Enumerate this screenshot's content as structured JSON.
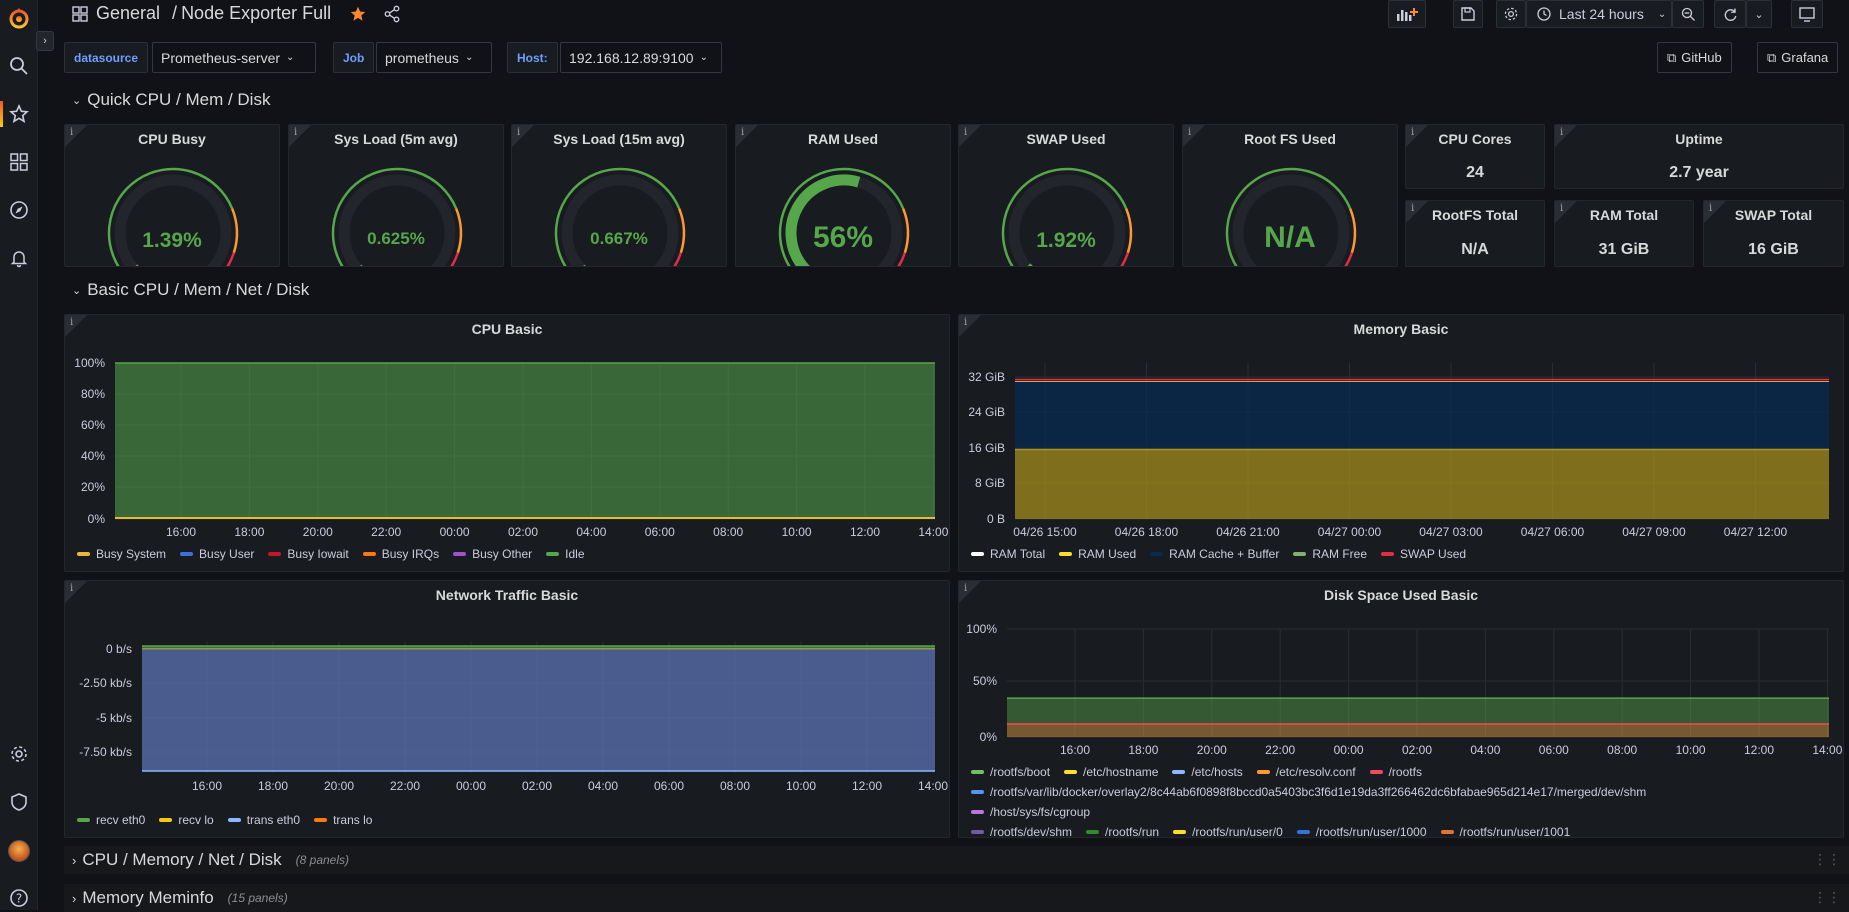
{
  "breadcrumb": {
    "folder": "General",
    "separator": "/",
    "dashboard": "Node Exporter Full"
  },
  "toolbar": {
    "time_range": "Last 24 hours"
  },
  "variables": [
    {
      "label": "datasource",
      "value": "Prometheus-server"
    },
    {
      "label": "Job",
      "value": "prometheus"
    },
    {
      "label": "Host:",
      "value": "192.168.12.89:9100"
    }
  ],
  "links": {
    "github": "GitHub",
    "grafana": "Grafana"
  },
  "rows": {
    "quick": "Quick CPU / Mem / Disk",
    "basic": "Basic CPU / Mem / Net / Disk",
    "cpu_mem": {
      "title": "CPU / Memory / Net / Disk",
      "count": "(8 panels)"
    },
    "meminfo": {
      "title": "Memory Meminfo",
      "count": "(15 panels)"
    }
  },
  "gauges": [
    {
      "title": "CPU Busy",
      "value": "1.39%",
      "fraction": 0.0139
    },
    {
      "title": "Sys Load (5m avg)",
      "value": "0.625%",
      "fraction": 0.00625
    },
    {
      "title": "Sys Load (15m avg)",
      "value": "0.667%",
      "fraction": 0.00667
    },
    {
      "title": "RAM Used",
      "value": "56%",
      "fraction": 0.56
    },
    {
      "title": "SWAP Used",
      "value": "1.92%",
      "fraction": 0.0192
    },
    {
      "title": "Root FS Used",
      "value": "N/A",
      "fraction": 0
    }
  ],
  "stats": {
    "cpu_cores": {
      "title": "CPU Cores",
      "value": "24"
    },
    "uptime": {
      "title": "Uptime",
      "value": "2.7 year"
    },
    "rootfs_total": {
      "title": "RootFS Total",
      "value": "N/A"
    },
    "ram_total": {
      "title": "RAM Total",
      "value": "31 GiB"
    },
    "swap_total": {
      "title": "SWAP Total",
      "value": "16 GiB"
    }
  },
  "panel_titles": {
    "cpu_basic": "CPU Basic",
    "memory_basic": "Memory Basic",
    "network_basic": "Network Traffic Basic",
    "disk_basic": "Disk Space Used Basic"
  },
  "chart_data": [
    {
      "type": "area",
      "title": "CPU Basic",
      "x": [
        "16:00",
        "18:00",
        "20:00",
        "22:00",
        "00:00",
        "02:00",
        "04:00",
        "06:00",
        "08:00",
        "10:00",
        "12:00",
        "14:00"
      ],
      "y_ticks": [
        "100%",
        "80%",
        "60%",
        "40%",
        "20%",
        "0%"
      ],
      "ylim": [
        0,
        100
      ],
      "series": [
        {
          "name": "Busy System",
          "color": "#eab839",
          "values": [
            0.5,
            0.5,
            0.5,
            0.5,
            0.5,
            0.5,
            0.5,
            0.5,
            0.5,
            0.5,
            0.5,
            0.5
          ]
        },
        {
          "name": "Busy User",
          "color": "#3d71d9",
          "values": [
            0.8,
            0.8,
            0.8,
            0.8,
            0.8,
            0.8,
            0.8,
            0.8,
            0.8,
            0.8,
            0.8,
            0.8
          ]
        },
        {
          "name": "Busy Iowait",
          "color": "#c4162a",
          "values": [
            0,
            0,
            0,
            0,
            0,
            0,
            0,
            0,
            0,
            0,
            0,
            0
          ]
        },
        {
          "name": "Busy IRQs",
          "color": "#ff780a",
          "values": [
            0,
            0,
            0,
            0,
            0,
            0,
            0,
            0,
            0,
            0,
            0,
            0
          ]
        },
        {
          "name": "Busy Other",
          "color": "#a352cc",
          "values": [
            0,
            0,
            0,
            0,
            0,
            0,
            0,
            0,
            0,
            0,
            0,
            0
          ]
        },
        {
          "name": "Idle",
          "color": "#56a64b",
          "values": [
            98.6,
            98.6,
            98.6,
            98.6,
            98.6,
            98.6,
            98.6,
            98.6,
            98.6,
            98.6,
            98.6,
            98.6
          ]
        }
      ]
    },
    {
      "type": "area",
      "title": "Memory Basic",
      "x": [
        "04/26 15:00",
        "04/26 18:00",
        "04/26 21:00",
        "04/27 00:00",
        "04/27 03:00",
        "04/27 06:00",
        "04/27 09:00",
        "04/27 12:00"
      ],
      "y_ticks": [
        "32 GiB",
        "24 GiB",
        "16 GiB",
        "8 GiB",
        "0 B"
      ],
      "ylim": [
        0,
        35
      ],
      "series": [
        {
          "name": "RAM Total",
          "color": "#ffffff",
          "values": [
            31.3,
            31.3,
            31.3,
            31.3,
            31.3,
            31.3,
            31.3,
            31.3
          ]
        },
        {
          "name": "RAM Used",
          "color": "#fade2a",
          "values": [
            15.6,
            15.6,
            15.6,
            15.6,
            15.6,
            15.6,
            15.6,
            15.6
          ]
        },
        {
          "name": "RAM Cache + Buffer",
          "color": "#052b51",
          "values": [
            15.2,
            15.2,
            15.2,
            15.2,
            15.2,
            15.2,
            15.2,
            15.2
          ]
        },
        {
          "name": "RAM Free",
          "color": "#7eb26d",
          "values": [
            0.4,
            0.4,
            0.4,
            0.4,
            0.4,
            0.4,
            0.4,
            0.4
          ]
        },
        {
          "name": "SWAP Used",
          "color": "#e02f44",
          "values": [
            0.3,
            0.3,
            0.3,
            0.3,
            0.3,
            0.3,
            0.3,
            0.3
          ]
        }
      ]
    },
    {
      "type": "area",
      "title": "Network Traffic Basic",
      "x": [
        "16:00",
        "18:00",
        "20:00",
        "22:00",
        "00:00",
        "02:00",
        "04:00",
        "06:00",
        "08:00",
        "10:00",
        "12:00",
        "14:00"
      ],
      "y_ticks": [
        "0 b/s",
        "-2.50 kb/s",
        "-5 kb/s",
        "-7.50 kb/s"
      ],
      "ylim": [
        -9,
        0.5
      ],
      "series": [
        {
          "name": "recv eth0",
          "color": "#56a64b",
          "values": [
            0.2,
            0.2,
            0.2,
            0.2,
            0.2,
            0.2,
            0.2,
            0.2,
            0.2,
            0.2,
            0.2,
            0.2
          ]
        },
        {
          "name": "recv lo",
          "color": "#f2cc0c",
          "values": [
            0.1,
            0.1,
            0.1,
            0.1,
            0.1,
            0.1,
            0.1,
            0.1,
            0.1,
            0.1,
            0.1,
            0.1
          ]
        },
        {
          "name": "trans eth0",
          "color": "#8ab8ff",
          "values": [
            -8.8,
            -8.8,
            -8.8,
            -8.8,
            -8.8,
            -8.8,
            -8.8,
            -8.8,
            -8.8,
            -8.8,
            -8.8,
            -8.8
          ]
        },
        {
          "name": "trans lo",
          "color": "#ff780a",
          "values": [
            0,
            0,
            0,
            0,
            0,
            0,
            0,
            0,
            0,
            0,
            0,
            0
          ]
        }
      ]
    },
    {
      "type": "area",
      "title": "Disk Space Used Basic",
      "x": [
        "16:00",
        "18:00",
        "20:00",
        "22:00",
        "00:00",
        "02:00",
        "04:00",
        "06:00",
        "08:00",
        "10:00",
        "12:00",
        "14:00"
      ],
      "y_ticks": [
        "100%",
        "50%",
        "0%"
      ],
      "ylim": [
        0,
        100
      ],
      "series": [
        {
          "name": "/rootfs/boot",
          "color": "#73bf69",
          "values": [
            36,
            36,
            36,
            36,
            36,
            36,
            36,
            36,
            36,
            36,
            36,
            36
          ]
        },
        {
          "name": "/etc/hostname",
          "color": "#fade2a",
          "values": [
            12,
            12,
            12,
            12,
            12,
            12,
            12,
            12,
            12,
            12,
            12,
            12
          ]
        },
        {
          "name": "/etc/hosts",
          "color": "#8ab8ff",
          "values": [
            12,
            12,
            12,
            12,
            12,
            12,
            12,
            12,
            12,
            12,
            12,
            12
          ]
        },
        {
          "name": "/etc/resolv.conf",
          "color": "#ff9830",
          "values": [
            12,
            12,
            12,
            12,
            12,
            12,
            12,
            12,
            12,
            12,
            12,
            12
          ]
        },
        {
          "name": "/rootfs",
          "color": "#f2495c",
          "values": [
            12,
            12,
            12,
            12,
            12,
            12,
            12,
            12,
            12,
            12,
            12,
            12
          ]
        },
        {
          "name": "/rootfs/var/lib/docker/overlay2/8c44ab6f0898f8bccd0a5403bc3f6d1e19da3ff266462dc6bfabae965d214e17/merged/dev/shm",
          "color": "#5794f2",
          "values": [
            0,
            0,
            0,
            0,
            0,
            0,
            0,
            0,
            0,
            0,
            0,
            0
          ]
        },
        {
          "name": "/host/sys/fs/cgroup",
          "color": "#b877d9",
          "values": [
            0,
            0,
            0,
            0,
            0,
            0,
            0,
            0,
            0,
            0,
            0,
            0
          ]
        },
        {
          "name": "/rootfs/dev/shm",
          "color": "#705da0",
          "values": [
            0,
            0,
            0,
            0,
            0,
            0,
            0,
            0,
            0,
            0,
            0,
            0
          ]
        },
        {
          "name": "/rootfs/run",
          "color": "#37872d",
          "values": [
            0,
            0,
            0,
            0,
            0,
            0,
            0,
            0,
            0,
            0,
            0,
            0
          ]
        },
        {
          "name": "/rootfs/run/user/0",
          "color": "#fade2a",
          "values": [
            0,
            0,
            0,
            0,
            0,
            0,
            0,
            0,
            0,
            0,
            0,
            0
          ]
        },
        {
          "name": "/rootfs/run/user/1000",
          "color": "#3274d9",
          "values": [
            0,
            0,
            0,
            0,
            0,
            0,
            0,
            0,
            0,
            0,
            0,
            0
          ]
        },
        {
          "name": "/rootfs/run/user/1001",
          "color": "#e0752d",
          "values": [
            0,
            0,
            0,
            0,
            0,
            0,
            0,
            0,
            0,
            0,
            0,
            0
          ]
        }
      ]
    }
  ]
}
